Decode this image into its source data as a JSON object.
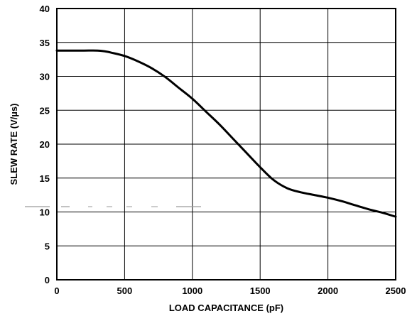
{
  "chart_data": {
    "type": "line",
    "title": "",
    "xlabel": "LOAD CAPACITANCE (pF)",
    "ylabel": "SLEW RATE (V/µs)",
    "xlim": [
      0,
      2500
    ],
    "ylim": [
      0,
      40
    ],
    "xticks": [
      0,
      500,
      1000,
      1500,
      2000,
      2500
    ],
    "yticks": [
      0,
      5,
      10,
      15,
      20,
      25,
      30,
      35,
      40
    ],
    "xtick_labels": [
      "0",
      "500",
      "1000",
      "1500",
      "2000",
      "2500"
    ],
    "ytick_labels": [
      "0",
      "5",
      "10",
      "15",
      "20",
      "25",
      "30",
      "35",
      "40"
    ],
    "grid": true,
    "series": [
      {
        "color": "#000000",
        "x": [
          0,
          100,
          200,
          300,
          350,
          400,
          500,
          600,
          700,
          800,
          900,
          1000,
          1100,
          1200,
          1300,
          1400,
          1500,
          1600,
          1700,
          1800,
          1900,
          2000,
          2100,
          2200,
          2300,
          2400,
          2500
        ],
        "y": [
          33.8,
          33.8,
          33.8,
          33.8,
          33.7,
          33.5,
          33.0,
          32.2,
          31.2,
          29.9,
          28.3,
          26.7,
          24.8,
          22.9,
          20.8,
          18.7,
          16.6,
          14.7,
          13.5,
          12.9,
          12.5,
          12.1,
          11.6,
          11.0,
          10.4,
          9.9,
          9.3
        ]
      }
    ]
  }
}
